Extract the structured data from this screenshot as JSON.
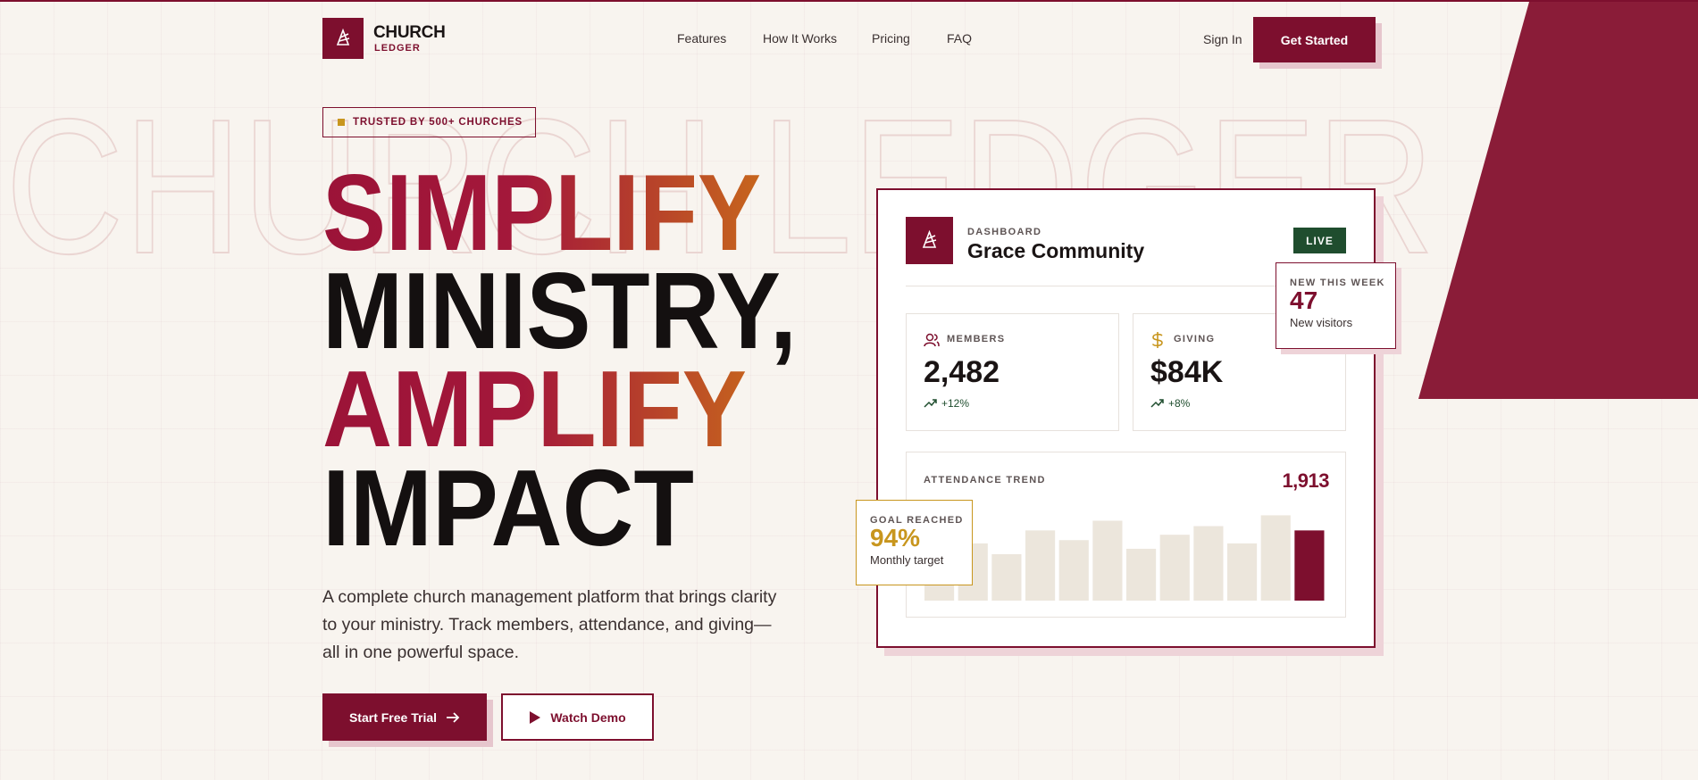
{
  "nav": {
    "brand": "CHURCH",
    "brand_sub": "LEDGER",
    "links": [
      "Features",
      "How It Works",
      "Pricing",
      "FAQ"
    ],
    "sign_in": "Sign In",
    "cta": "Get Started"
  },
  "hero": {
    "watermark": "CHURCH LEDGER",
    "badge": "TRUSTED BY 500+ CHURCHES",
    "headline": [
      "SIMPLIFY",
      "MINISTRY,",
      "AMPLIFY",
      "IMPACT"
    ],
    "description": "A complete church management platform that brings clarity to your ministry. Track members, attendance, and giving—all in one powerful space.",
    "primary_button": "Start Free Trial",
    "secondary_button": "Watch Demo"
  },
  "dashboard": {
    "label": "DASHBOARD",
    "name": "Grace Community",
    "status": "LIVE",
    "stats": [
      {
        "label": "MEMBERS",
        "value": "2,482",
        "change": "+12%"
      },
      {
        "label": "GIVING",
        "value": "$84K",
        "change": "+8%"
      }
    ],
    "attendance": {
      "title": "ATTENDANCE TREND",
      "value": "1,913",
      "bars": [
        53,
        53,
        43,
        65,
        56,
        74,
        48,
        61,
        69,
        53,
        79,
        65
      ]
    }
  },
  "callouts": {
    "new_week": {
      "label": "NEW THIS WEEK",
      "value": "47",
      "caption": "New visitors"
    },
    "goal": {
      "label": "GOAL REACHED",
      "value": "94%",
      "caption": "Monthly target"
    }
  }
}
